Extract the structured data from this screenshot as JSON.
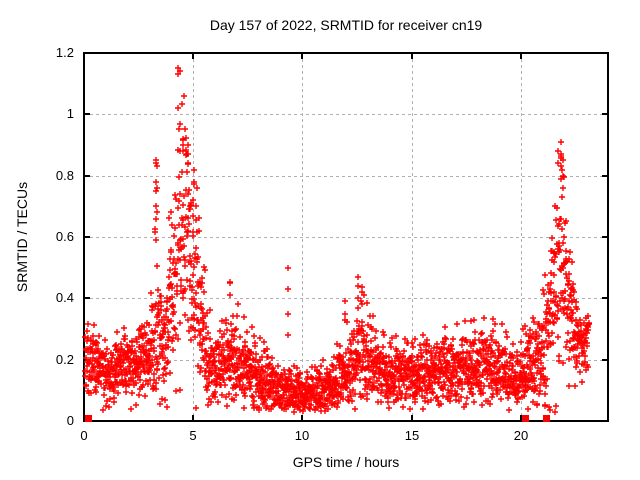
{
  "chart_data": {
    "type": "scatter",
    "title": "Day 157 of 2022, SRMTID for receiver cn19",
    "xlabel": "GPS time / hours",
    "ylabel": "SRMTID / TECUs",
    "xlim": [
      0,
      24
    ],
    "ylim": [
      0,
      1.2
    ],
    "xticks": [
      {
        "v": 0,
        "label": "0"
      },
      {
        "v": 5,
        "label": "5"
      },
      {
        "v": 10,
        "label": "10"
      },
      {
        "v": 15,
        "label": "15"
      },
      {
        "v": 20,
        "label": "20"
      }
    ],
    "yticks": [
      {
        "v": 0,
        "label": "0"
      },
      {
        "v": 0.2,
        "label": "0.2"
      },
      {
        "v": 0.4,
        "label": "0.4"
      },
      {
        "v": 0.6,
        "label": "0.6"
      },
      {
        "v": 0.8,
        "label": "0.8"
      },
      {
        "v": 1,
        "label": "1"
      },
      {
        "v": 1.2,
        "label": "1.2"
      }
    ],
    "grid": true,
    "legend": "none",
    "marker": "+",
    "marker_color": "#ff0000",
    "grid_color": "#b0b0b0",
    "axis_color": "#000000",
    "background": "#ffffff",
    "seed": 1157,
    "t_start": 0.05,
    "t_end": 23.12,
    "t_step": 0.0085,
    "tail_prob": 0.05,
    "floor": 0.03,
    "envelope": [
      [
        0.0,
        0.21,
        0.05,
        0.36
      ],
      [
        0.4,
        0.19,
        0.05,
        0.33
      ],
      [
        0.8,
        0.16,
        0.05,
        0.3
      ],
      [
        1.2,
        0.14,
        0.05,
        0.28
      ],
      [
        1.6,
        0.19,
        0.05,
        0.31
      ],
      [
        2.0,
        0.17,
        0.05,
        0.3
      ],
      [
        2.4,
        0.18,
        0.05,
        0.31
      ],
      [
        2.8,
        0.21,
        0.06,
        0.34
      ],
      [
        3.1,
        0.24,
        0.07,
        0.45
      ],
      [
        3.3,
        0.3,
        0.15,
        0.86
      ],
      [
        3.6,
        0.24,
        0.08,
        0.5
      ],
      [
        3.9,
        0.33,
        0.12,
        0.8
      ],
      [
        4.2,
        0.45,
        0.18,
        1.0
      ],
      [
        4.45,
        0.55,
        0.2,
        1.15
      ],
      [
        4.7,
        0.6,
        0.17,
        0.95
      ],
      [
        5.0,
        0.5,
        0.15,
        0.85
      ],
      [
        5.3,
        0.33,
        0.12,
        0.7
      ],
      [
        5.6,
        0.22,
        0.07,
        0.45
      ],
      [
        6.0,
        0.16,
        0.05,
        0.3
      ],
      [
        6.4,
        0.2,
        0.06,
        0.38
      ],
      [
        6.7,
        0.23,
        0.07,
        0.46
      ],
      [
        7.0,
        0.2,
        0.06,
        0.42
      ],
      [
        7.4,
        0.16,
        0.05,
        0.33
      ],
      [
        7.8,
        0.15,
        0.05,
        0.3
      ],
      [
        8.2,
        0.13,
        0.045,
        0.27
      ],
      [
        8.6,
        0.11,
        0.04,
        0.24
      ],
      [
        9.0,
        0.1,
        0.04,
        0.22
      ],
      [
        9.4,
        0.1,
        0.04,
        0.2
      ],
      [
        9.8,
        0.1,
        0.035,
        0.2
      ],
      [
        10.2,
        0.1,
        0.04,
        0.21
      ],
      [
        10.6,
        0.09,
        0.04,
        0.2
      ],
      [
        11.0,
        0.1,
        0.04,
        0.23
      ],
      [
        11.4,
        0.12,
        0.045,
        0.26
      ],
      [
        11.8,
        0.15,
        0.05,
        0.3
      ],
      [
        12.2,
        0.18,
        0.06,
        0.38
      ],
      [
        12.6,
        0.21,
        0.07,
        0.47
      ],
      [
        13.0,
        0.19,
        0.06,
        0.4
      ],
      [
        13.4,
        0.17,
        0.05,
        0.33
      ],
      [
        13.8,
        0.15,
        0.05,
        0.3
      ],
      [
        14.2,
        0.14,
        0.045,
        0.28
      ],
      [
        14.6,
        0.15,
        0.045,
        0.28
      ],
      [
        15.0,
        0.14,
        0.045,
        0.28
      ],
      [
        15.4,
        0.14,
        0.045,
        0.28
      ],
      [
        15.8,
        0.15,
        0.05,
        0.3
      ],
      [
        16.2,
        0.16,
        0.05,
        0.31
      ],
      [
        16.6,
        0.17,
        0.055,
        0.34
      ],
      [
        17.0,
        0.16,
        0.05,
        0.32
      ],
      [
        17.4,
        0.17,
        0.055,
        0.34
      ],
      [
        17.8,
        0.16,
        0.05,
        0.33
      ],
      [
        18.2,
        0.17,
        0.055,
        0.35
      ],
      [
        18.6,
        0.18,
        0.055,
        0.35
      ],
      [
        19.0,
        0.17,
        0.05,
        0.33
      ],
      [
        19.4,
        0.15,
        0.05,
        0.3
      ],
      [
        19.8,
        0.14,
        0.05,
        0.3
      ],
      [
        20.1,
        0.15,
        0.06,
        0.3
      ],
      [
        20.5,
        0.19,
        0.06,
        0.33
      ],
      [
        20.9,
        0.21,
        0.06,
        0.36
      ],
      [
        21.2,
        0.27,
        0.1,
        0.55
      ],
      [
        21.5,
        0.4,
        0.14,
        0.8
      ],
      [
        21.8,
        0.48,
        0.16,
        0.92
      ],
      [
        22.0,
        0.45,
        0.14,
        0.8
      ],
      [
        22.3,
        0.33,
        0.1,
        0.6
      ],
      [
        22.6,
        0.27,
        0.06,
        0.42
      ],
      [
        22.9,
        0.26,
        0.05,
        0.38
      ],
      [
        23.12,
        0.25,
        0.05,
        0.36
      ]
    ],
    "spikes": [
      {
        "x": 3.3,
        "ys": [
          0.85,
          0.84,
          0.78,
          0.75,
          0.7,
          0.66,
          0.59
        ]
      },
      {
        "x": 3.36,
        "ys": [
          0.83,
          0.76,
          0.68
        ]
      },
      {
        "x": 4.31,
        "ys": [
          1.15,
          1.13,
          1.02
        ]
      },
      {
        "x": 4.38,
        "ys": [
          1.14,
          0.97
        ]
      },
      {
        "x": 4.55,
        "ys": [
          0.92,
          0.9,
          0.88
        ]
      },
      {
        "x": 4.75,
        "ys": [
          0.9,
          0.87,
          0.84
        ]
      },
      {
        "x": 5.05,
        "ys": [
          0.82,
          0.78
        ]
      },
      {
        "x": 6.7,
        "ys": [
          0.45,
          0.41
        ]
      },
      {
        "x": 9.34,
        "ys": [
          0.5,
          0.43,
          0.35,
          0.28
        ]
      },
      {
        "x": 11.95,
        "ys": [
          0.39,
          0.35,
          0.33
        ]
      },
      {
        "x": 12.55,
        "ys": [
          0.47,
          0.44,
          0.4,
          0.37
        ]
      },
      {
        "x": 12.75,
        "ys": [
          0.42,
          0.38
        ]
      },
      {
        "x": 21.7,
        "ys": [
          0.88,
          0.84
        ]
      },
      {
        "x": 21.85,
        "ys": [
          0.91,
          0.87,
          0.83,
          0.79
        ]
      },
      {
        "x": 21.95,
        "ys": [
          0.85,
          0.8,
          0.76
        ]
      }
    ],
    "zero_squares_x": [
      0.18,
      20.2,
      21.16
    ]
  }
}
